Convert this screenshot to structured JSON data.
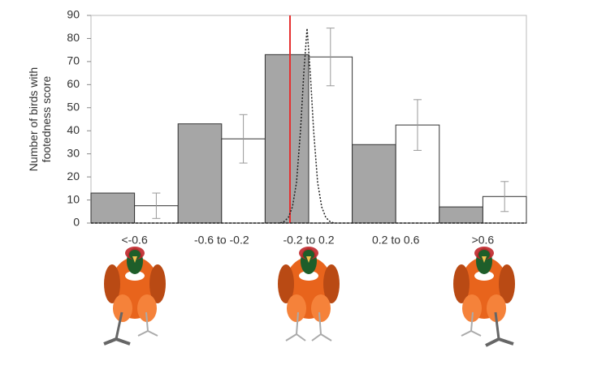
{
  "chart_data": {
    "type": "bar",
    "ylabel": [
      "Number of birds with",
      "footedness score"
    ],
    "categories": [
      "<-0.6",
      "-0.6 to -0.2",
      "-0.2 to 0.2",
      "0.2 to 0.6",
      ">0.6"
    ],
    "series": [
      {
        "color": "#a6a6a6",
        "values": [
          13,
          43,
          73,
          34,
          7
        ]
      },
      {
        "color": "#ffffff",
        "values": [
          7.5,
          36.5,
          72,
          42.5,
          11.5
        ],
        "errors": [
          5.5,
          10.5,
          12.5,
          11,
          6.5
        ]
      }
    ],
    "ylim": [
      0,
      90
    ],
    "yticks": [
      0,
      10,
      20,
      30,
      40,
      50,
      60,
      70,
      80,
      90
    ]
  }
}
